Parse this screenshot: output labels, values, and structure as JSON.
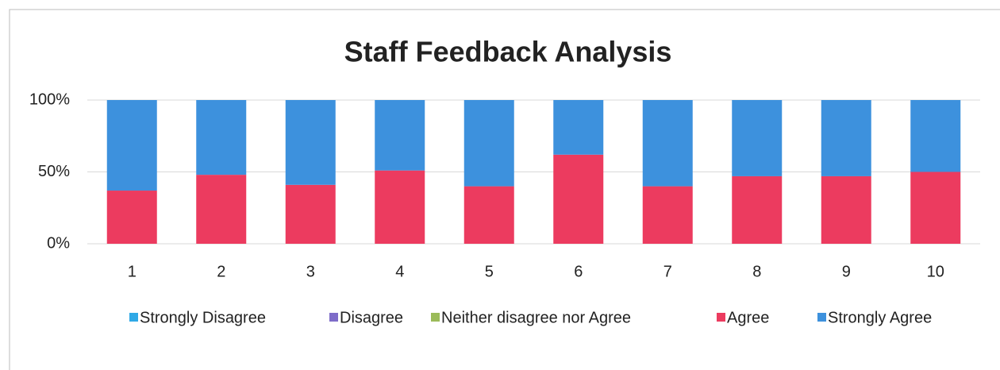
{
  "chart_data": {
    "type": "stacked_bar",
    "title": "Staff Feedback Analysis",
    "categories": [
      "1",
      "2",
      "3",
      "4",
      "5",
      "6",
      "7",
      "8",
      "9",
      "10"
    ],
    "series": [
      {
        "name": "Strongly Disagree",
        "color": "#2fa9e6",
        "values": [
          0,
          0,
          0,
          0,
          0,
          0,
          0,
          0,
          0,
          0
        ]
      },
      {
        "name": "Disagree",
        "color": "#7e6cc9",
        "values": [
          0,
          0,
          0,
          0,
          0,
          0,
          0,
          0,
          0,
          0
        ]
      },
      {
        "name": "Neither disagree nor Agree",
        "color": "#9bbb59",
        "values": [
          0,
          0,
          0,
          0,
          0,
          0,
          0,
          0,
          0,
          0
        ]
      },
      {
        "name": "Agree",
        "color": "#ec3b5f",
        "values": [
          37,
          48,
          41,
          51,
          40,
          62,
          40,
          47,
          47,
          50
        ]
      },
      {
        "name": "Strongly Agree",
        "color": "#3d91dd",
        "values": [
          63,
          52,
          59,
          49,
          60,
          38,
          60,
          53,
          53,
          50
        ]
      }
    ],
    "ylim": [
      0,
      100
    ],
    "yticks": [
      {
        "value": 0,
        "label": "0%"
      },
      {
        "value": 50,
        "label": "50%"
      },
      {
        "value": 100,
        "label": "100%"
      }
    ],
    "grid": true,
    "legend": "bottom"
  }
}
